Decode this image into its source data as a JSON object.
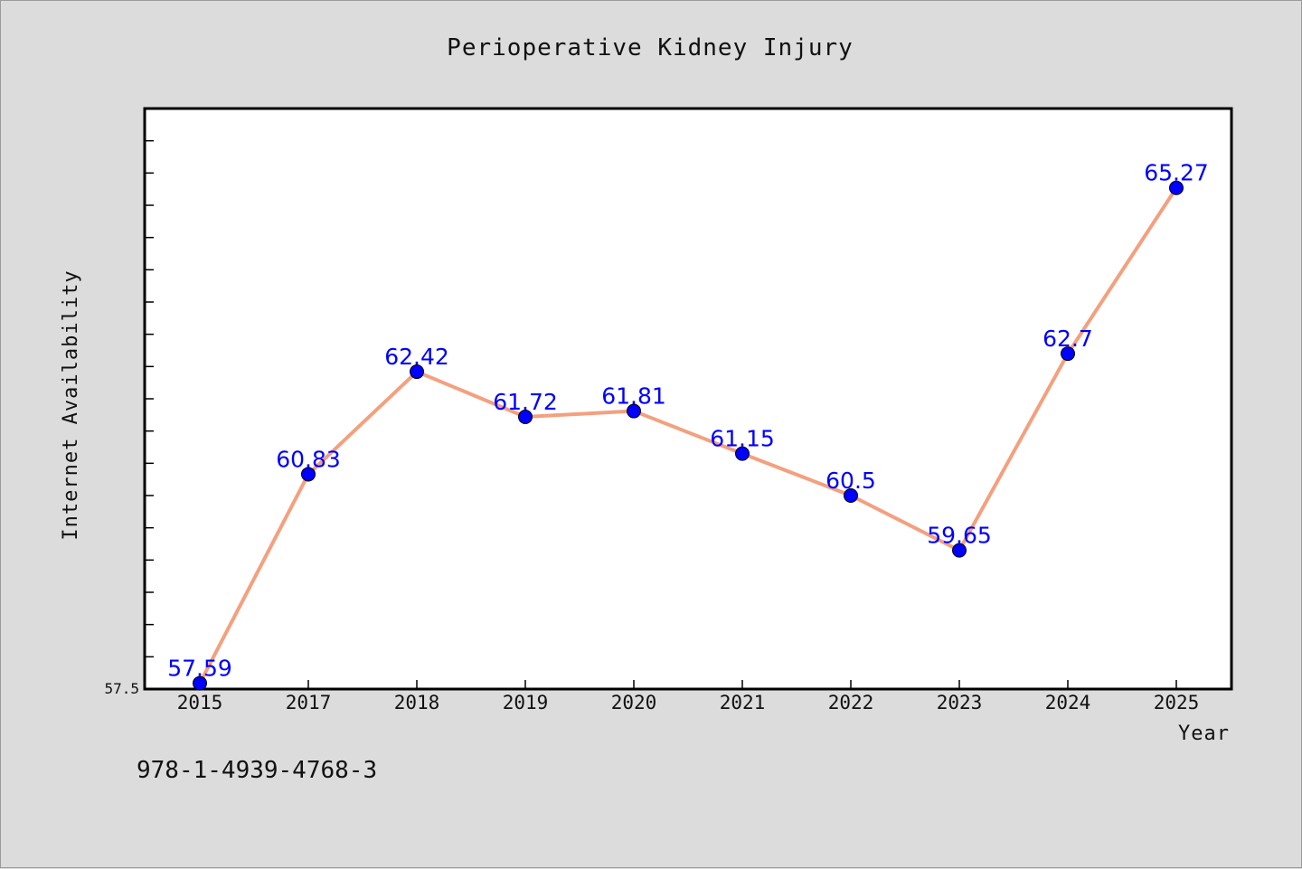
{
  "chart_data": {
    "type": "line",
    "title": "Perioperative Kidney Injury",
    "xlabel": "Year",
    "ylabel": "Internet Availability",
    "categories": [
      "2015",
      "2017",
      "2018",
      "2019",
      "2020",
      "2021",
      "2022",
      "2023",
      "2024",
      "2025"
    ],
    "series": [
      {
        "values": [
          57.59,
          60.83,
          62.42,
          61.72,
          61.81,
          61.15,
          60.5,
          59.65,
          62.7,
          65.27
        ],
        "color": "#f4a07e",
        "marker_color": "#0000ff"
      }
    ],
    "y_tick_labels": [
      "57.5"
    ],
    "ylim": [
      57.5,
      66.5
    ],
    "grid": false,
    "legend": "none",
    "label_color": "#0000ff"
  },
  "footer": {
    "isbn": "978-1-4939-4768-3"
  },
  "colors": {
    "background": "#dcdcdc",
    "plot_background": "#ffffff"
  }
}
